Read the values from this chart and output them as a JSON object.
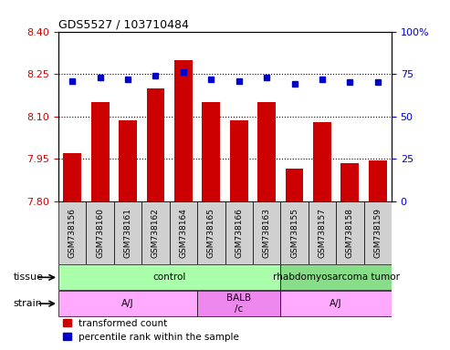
{
  "title": "GDS5527 / 103710484",
  "samples": [
    "GSM738156",
    "GSM738160",
    "GSM738161",
    "GSM738162",
    "GSM738164",
    "GSM738165",
    "GSM738166",
    "GSM738163",
    "GSM738155",
    "GSM738157",
    "GSM738158",
    "GSM738159"
  ],
  "transformed_count": [
    7.97,
    8.15,
    8.085,
    8.2,
    8.3,
    8.15,
    8.085,
    8.15,
    7.915,
    8.08,
    7.935,
    7.945
  ],
  "percentile_rank": [
    71,
    73,
    72,
    74,
    76,
    72,
    71,
    73,
    69,
    72,
    70,
    70
  ],
  "ylim_left": [
    7.8,
    8.4
  ],
  "ylim_right": [
    0,
    100
  ],
  "yticks_left": [
    7.8,
    7.95,
    8.1,
    8.25,
    8.4
  ],
  "yticks_right": [
    0,
    25,
    50,
    75,
    100
  ],
  "hlines": [
    7.95,
    8.1,
    8.25
  ],
  "bar_color": "#cc0000",
  "dot_color": "#0000cc",
  "tissue_groups": [
    {
      "label": "control",
      "start": 0,
      "end": 8,
      "color": "#aaffaa"
    },
    {
      "label": "rhabdomyosarcoma tumor",
      "start": 8,
      "end": 12,
      "color": "#88dd88"
    }
  ],
  "strain_groups": [
    {
      "label": "A/J",
      "start": 0,
      "end": 5,
      "color": "#ffaaff"
    },
    {
      "label": "BALB\n/c",
      "start": 5,
      "end": 8,
      "color": "#ee88ee"
    },
    {
      "label": "A/J",
      "start": 8,
      "end": 12,
      "color": "#ffaaff"
    }
  ],
  "legend_items": [
    {
      "label": "transformed count",
      "color": "#cc0000"
    },
    {
      "label": "percentile rank within the sample",
      "color": "#0000cc"
    }
  ],
  "axis_color_left": "#cc0000",
  "axis_color_right": "#0000cc",
  "xlabel_bg": "#d0d0d0",
  "plot_bg": "#ffffff"
}
